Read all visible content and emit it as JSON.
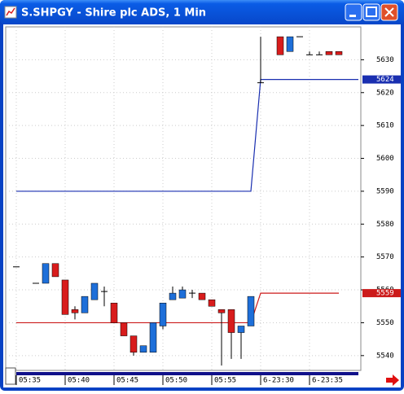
{
  "chart_data": {
    "type": "candlestick",
    "title": "S.SHPGY - Shire plc ADS, 1 Min",
    "categories": [
      "05:35",
      null,
      null,
      null,
      null,
      "05:40",
      null,
      null,
      null,
      null,
      "05:45",
      null,
      null,
      null,
      null,
      "05:50",
      null,
      null,
      null,
      null,
      "05:55",
      null,
      null,
      null,
      null,
      "6-23:30",
      null,
      null,
      null,
      null,
      "6-23:35",
      null,
      null,
      null,
      null,
      null
    ],
    "open": [
      5567,
      null,
      5562,
      5562,
      5568,
      5563,
      5554,
      5553,
      5557,
      5559.5,
      5556,
      5550,
      5546,
      5541,
      5541,
      5549,
      5557,
      5557.5,
      5559,
      5559,
      5557,
      5554,
      5554,
      5547,
      5549,
      5623,
      null,
      5637,
      5632.5,
      5637,
      5631.5,
      5631.5,
      5632.5,
      5632.5,
      null,
      null
    ],
    "high": [
      5567,
      null,
      5562,
      5568,
      5568,
      5563,
      5555,
      5558,
      5562,
      5561,
      5556,
      5550,
      5546,
      5543,
      5550,
      5556,
      5561,
      5561,
      5560,
      5559,
      5557,
      5554,
      5554,
      5549,
      5558,
      5637,
      null,
      5637,
      5637,
      5637,
      5632.5,
      5632.5,
      5632.5,
      5632.5,
      null,
      null
    ],
    "low": [
      5567,
      null,
      5562,
      5562,
      5564,
      5552.5,
      5551,
      5553,
      5557,
      5555,
      5550,
      5546,
      5540,
      5541,
      5541,
      5548,
      5557,
      5557.5,
      5557.5,
      5557,
      5555,
      5537,
      5539,
      5539,
      5549,
      5623,
      null,
      5631.5,
      5632.5,
      5637,
      5631.5,
      5631.5,
      5631.5,
      5631.5,
      null,
      null
    ],
    "close": [
      5567,
      null,
      5562,
      5568,
      5564,
      5552.5,
      5553,
      5558,
      5562,
      5559.5,
      5550,
      5546,
      5541,
      5543,
      5550,
      5556,
      5559,
      5560,
      5559,
      5557,
      5555,
      5553,
      5547,
      5549,
      5558,
      5623,
      null,
      5631.5,
      5637,
      5637,
      5631.5,
      5631.5,
      5631.5,
      5631.5,
      null,
      null
    ],
    "up_color": "#1e6fd9",
    "down_color": "#d81c1c",
    "lines": [
      {
        "color": "#1a2fb0",
        "values": [
          5590,
          5590,
          5590,
          5590,
          5590,
          5590,
          5590,
          5590,
          5590,
          5590,
          5590,
          5590,
          5590,
          5590,
          5590,
          5590,
          5590,
          5590,
          5590,
          5590,
          5590,
          5590,
          5590,
          5590,
          5590,
          5624,
          5624,
          5624,
          5624,
          5624,
          5624,
          5624,
          5624,
          5624,
          5624,
          5624
        ]
      },
      {
        "color": "#cc1a1a",
        "values": [
          5550,
          5550,
          5550,
          5550,
          5550,
          5550,
          5550,
          5550,
          5550,
          5550,
          5550,
          5550,
          5550,
          5550,
          5550,
          5550,
          5550,
          5550,
          5550,
          5550,
          5550,
          5550,
          5550,
          5550,
          5550,
          5559,
          5559,
          5559,
          5559,
          5559,
          5559,
          5559,
          5559,
          5559,
          null,
          null
        ]
      }
    ],
    "ylim": [
      5535.5,
      5640
    ],
    "yticks": [
      5540,
      5550,
      5560,
      5570,
      5580,
      5590,
      5600,
      5610,
      5620,
      5630
    ],
    "grid": true
  }
}
